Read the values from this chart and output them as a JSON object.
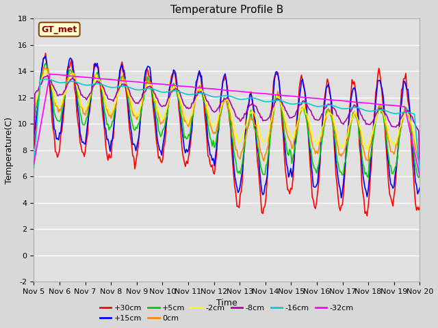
{
  "title": "Temperature Profile B",
  "xlabel": "Time",
  "ylabel": "Temperature(C)",
  "ylim": [
    -2,
    18
  ],
  "xlim": [
    0,
    15
  ],
  "xtick_labels": [
    "Nov 5",
    "Nov 6",
    "Nov 7",
    "Nov 8",
    "Nov 9",
    "Nov 10",
    "Nov 11",
    "Nov 12",
    "Nov 13",
    "Nov 14",
    "Nov 15",
    "Nov 16",
    "Nov 17",
    "Nov 18",
    "Nov 19",
    "Nov 20"
  ],
  "series_labels": [
    "+30cm",
    "+15cm",
    "+5cm",
    "0cm",
    "-2cm",
    "-8cm",
    "-16cm",
    "-32cm"
  ],
  "series_colors": [
    "#ff0000",
    "#0000ff",
    "#00cc00",
    "#ff8800",
    "#ffff00",
    "#aa00aa",
    "#00cccc",
    "#ff00ff"
  ],
  "background_color": "#e0e0e0",
  "grid_color": "#ffffff",
  "legend_label": "GT_met",
  "legend_box_color": "#ffffcc",
  "legend_box_edge": "#8B4513",
  "title_fontsize": 11,
  "axis_fontsize": 9,
  "tick_fontsize": 8
}
